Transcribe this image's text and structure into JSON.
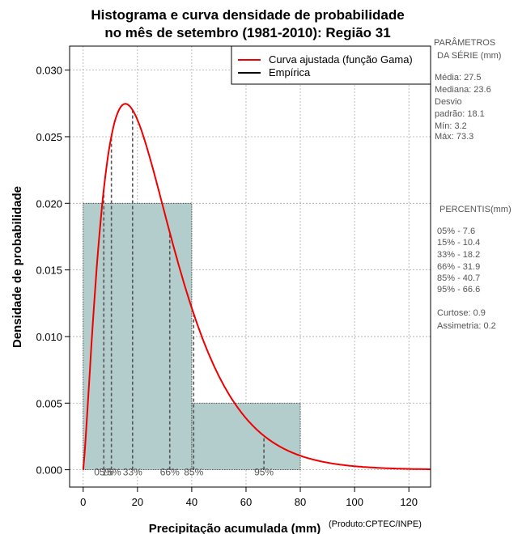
{
  "chart_data": {
    "type": "histogram",
    "title_line1": "Histograma e curva densidade de probabilidade",
    "title_line2": "no mês de setembro (1981-2010): Região 31",
    "xlabel": "Precipitação acumulada (mm)",
    "ylabel": "Densidade de probabilidade",
    "credit": "(Produto:CPTEC/INPE)",
    "xlim": [
      -5,
      128
    ],
    "ylim": [
      -0.0013,
      0.0318
    ],
    "x_ticks": [
      0,
      20,
      40,
      60,
      80,
      100,
      120
    ],
    "x_tick_labels": [
      "0",
      "20",
      "40",
      "60",
      "80",
      "100",
      "120"
    ],
    "y_ticks": [
      0.0,
      0.005,
      0.01,
      0.015,
      0.02,
      0.025,
      0.03
    ],
    "y_tick_labels": [
      "0.000",
      "0.005",
      "0.010",
      "0.015",
      "0.020",
      "0.025",
      "0.030"
    ],
    "grid": true,
    "bins": [
      {
        "from": 0,
        "to": 40,
        "density": 0.02
      },
      {
        "from": 40,
        "to": 80,
        "density": 0.005
      }
    ],
    "bar_color": "#b3cccc",
    "curve": {
      "name": "Curva ajustada (função Gama)",
      "shape": 2.3,
      "scale": 11.96,
      "color": "#ee0000"
    },
    "empirical": {
      "name": "Empírica",
      "color": "#000000"
    },
    "percentile_lines": [
      {
        "value": 7.6,
        "label": "05%"
      },
      {
        "value": 10.4,
        "label": "15%"
      },
      {
        "value": 18.2,
        "label": "33%"
      },
      {
        "value": 31.9,
        "label": "66%"
      },
      {
        "value": 40.7,
        "label": "85%"
      },
      {
        "value": 66.6,
        "label": "95%"
      }
    ],
    "legend_position": "top-right"
  },
  "side_panel": {
    "params_title_1": "PARÂMETROS",
    "params_title_2": "DA SÉRIE (mm)",
    "media": "Média:  27.5",
    "mediana": "Mediana:  23.6",
    "desvio_1": "Desvio",
    "desvio_2": "padrão:  18.1",
    "min": "Mín:  3.2",
    "max": "Máx:  73.3",
    "percentis_title": "PERCENTIS(mm)",
    "p05": "05% -  7.6",
    "p15": "15% -  10.4",
    "p33": "33% -  18.2",
    "p66": "66% -  31.9",
    "p85": "85% -  40.7",
    "p95": "95% -  66.6",
    "curtose": "Curtose:  0.9",
    "assimetria": "Assimetria:  0.2"
  }
}
